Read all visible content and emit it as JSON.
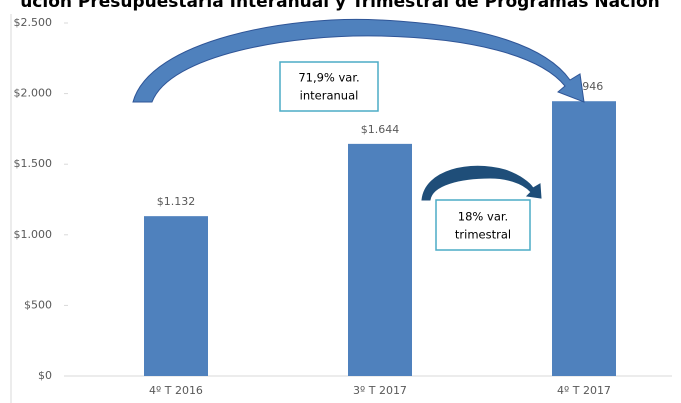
{
  "chart_data": {
    "type": "bar",
    "title": "ución Presupuestaria Interanual y Trimestral de Programas Nación",
    "categories": [
      "4º T 2016",
      "3º T 2017",
      "4º T 2017"
    ],
    "values": [
      1132,
      1644,
      1946
    ],
    "value_labels": [
      "$1.132",
      "$1.644",
      "$1.946"
    ],
    "color": "#4f81bd",
    "ylim": [
      0,
      2500
    ],
    "yticks": [
      {
        "value": 0,
        "label": "$0"
      },
      {
        "value": 500,
        "label": "$500"
      },
      {
        "value": 1000,
        "label": "$1.000"
      },
      {
        "value": 1500,
        "label": "$1.500"
      },
      {
        "value": 2000,
        "label": "$2.000"
      },
      {
        "value": 2500,
        "label": "$2.500"
      }
    ],
    "annotations": [
      [
        "71,9% var.",
        "interanual"
      ],
      [
        "18% var.",
        "trimestral"
      ]
    ]
  }
}
